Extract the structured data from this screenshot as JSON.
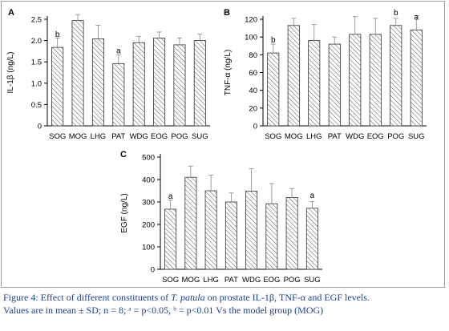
{
  "chart_data": [
    {
      "type": "bar",
      "panel_label": "A",
      "ylabel": "IL-1β (ng/L)",
      "categories": [
        "SOG",
        "MOG",
        "LHG",
        "PAT",
        "WDG",
        "EOG",
        "POG",
        "SUG"
      ],
      "values": [
        1.84,
        2.47,
        2.04,
        1.46,
        1.95,
        2.06,
        1.9,
        2.0
      ],
      "errors": [
        0.22,
        0.14,
        0.32,
        0.2,
        0.15,
        0.14,
        0.16,
        0.15
      ],
      "sig": [
        "b",
        "",
        "",
        "a",
        "",
        "",
        "",
        ""
      ],
      "ylim": [
        0,
        2.5
      ],
      "yticks": [
        0,
        0.5,
        1.0,
        1.5,
        2.0,
        2.5
      ],
      "ytick_labels": [
        "0",
        "0.5",
        "1.0",
        "1.5",
        "2.0",
        "2.5"
      ]
    },
    {
      "type": "bar",
      "panel_label": "B",
      "ylabel": "TNF-α (ng/L)",
      "categories": [
        "SOG",
        "MOG",
        "LHG",
        "PAT",
        "WDG",
        "EOG",
        "POG",
        "SUG"
      ],
      "values": [
        82,
        113,
        96,
        92,
        103,
        103,
        113,
        108
      ],
      "errors": [
        10,
        8,
        18,
        8,
        20,
        18,
        8,
        16
      ],
      "sig": [
        "b",
        "",
        "",
        "",
        "",
        "",
        "b",
        "a"
      ],
      "ylim": [
        0,
        120
      ],
      "yticks": [
        0,
        20,
        40,
        60,
        80,
        100,
        120
      ],
      "ytick_labels": [
        "0",
        "20",
        "40",
        "60",
        "80",
        "100",
        "120"
      ]
    },
    {
      "type": "bar",
      "panel_label": "C",
      "ylabel": "EGF (ng/L)",
      "categories": [
        "SOG",
        "MOG",
        "LHG",
        "PAT",
        "WDG",
        "EOG",
        "POG",
        "SUG"
      ],
      "values": [
        268,
        410,
        350,
        300,
        348,
        292,
        320,
        272
      ],
      "errors": [
        40,
        50,
        70,
        40,
        100,
        90,
        40,
        30
      ],
      "sig": [
        "a",
        "",
        "",
        "",
        "",
        "",
        "",
        "a"
      ],
      "ylim": [
        0,
        500
      ],
      "yticks": [
        0,
        100,
        200,
        300,
        400,
        500
      ],
      "ytick_labels": [
        "0",
        "100",
        "200",
        "300",
        "400",
        "500"
      ]
    }
  ],
  "caption": {
    "prefix": "Figure 4:  Effect of different constituents of ",
    "species": "T. patula",
    "suffix": " on prostate IL-1β, TNF-α and EGF levels.",
    "line2": "Values are in mean ± SD; n = 8; ᵃ = p<0.05, ᵇ = p<0.01 Vs the model group (MOG)"
  },
  "colors": {
    "caption": "#1a3f9a",
    "frame": "#9a9a9a",
    "bar_hatch": "#555555"
  }
}
